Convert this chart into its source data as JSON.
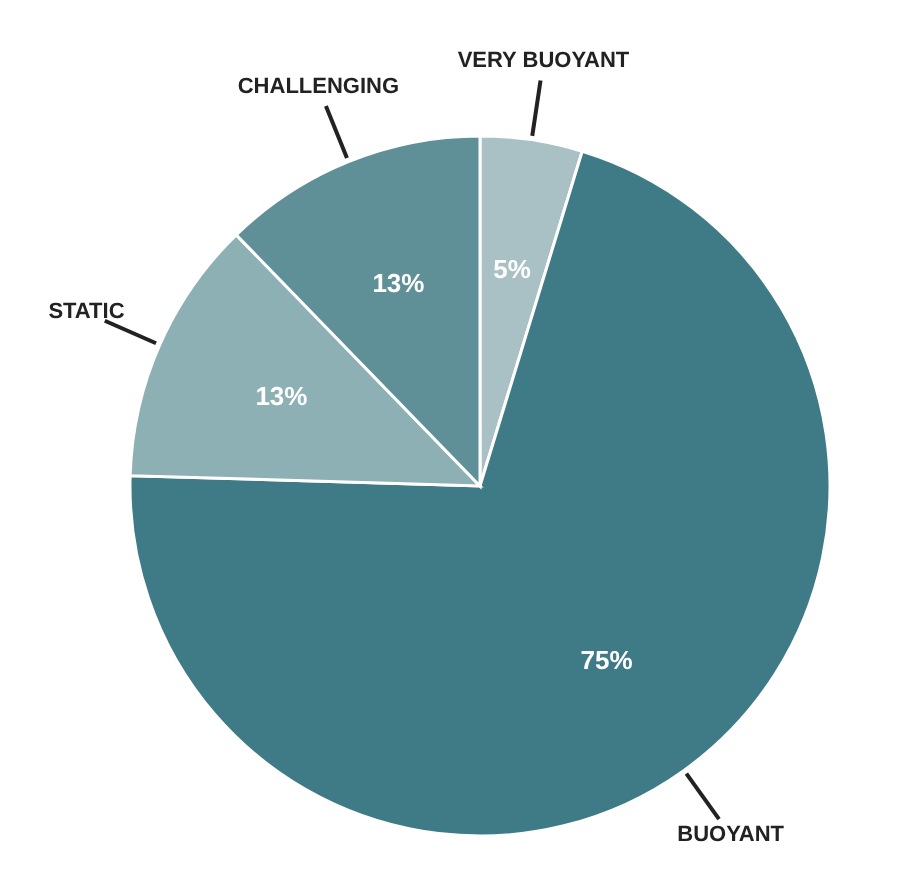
{
  "chart_data": {
    "type": "pie",
    "categories": [
      "VERY BUOYANT",
      "BUOYANT",
      "STATIC",
      "CHALLENGING"
    ],
    "values": [
      5,
      75,
      13,
      13
    ],
    "value_labels": [
      "5%",
      "75%",
      "13%",
      "13%"
    ],
    "colors": [
      "#a9c1c4",
      "#3f7b86",
      "#8db0b5",
      "#5f9098"
    ]
  }
}
